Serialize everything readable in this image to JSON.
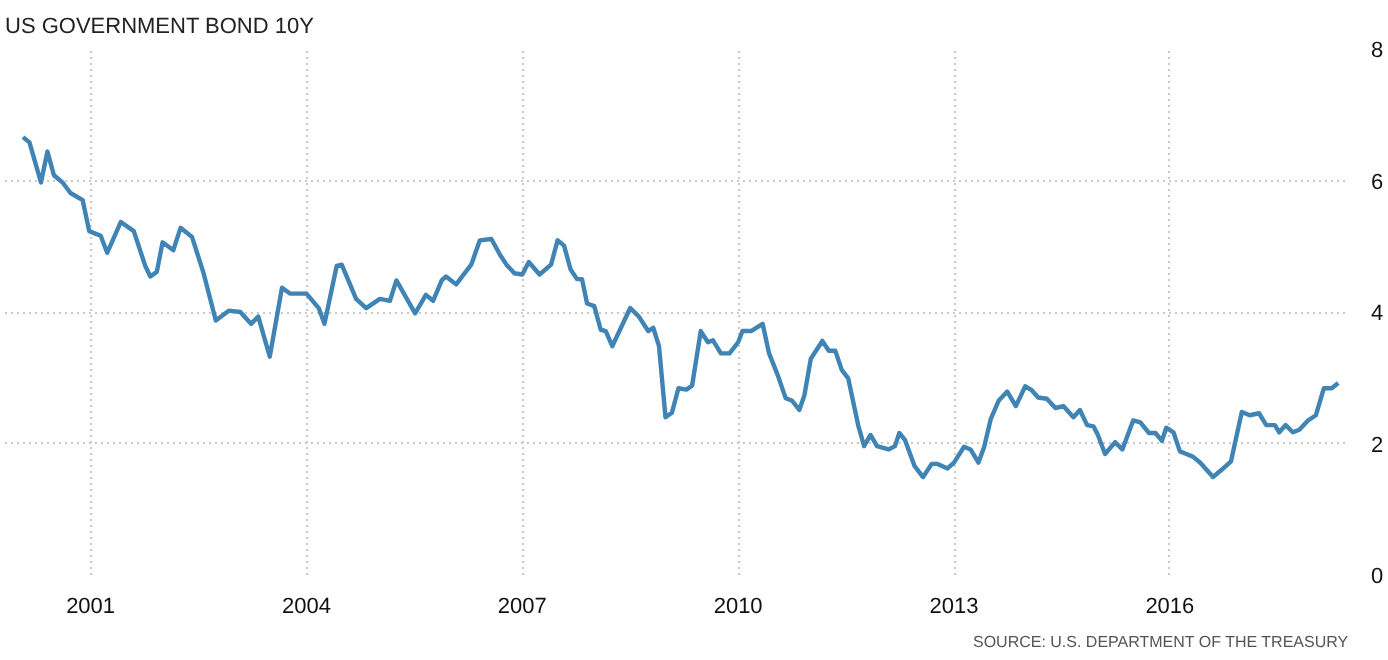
{
  "chart_data": {
    "type": "line",
    "title": "US GOVERNMENT BOND 10Y",
    "annotations": [
      "SOURCE: U.S. DEPARTMENT OF THE TREASURY"
    ],
    "x": [
      2000.06,
      2000.15,
      2000.31,
      2000.4,
      2000.49,
      2000.61,
      2000.72,
      2000.89,
      2000.98,
      2001.14,
      2001.23,
      2001.42,
      2001.6,
      2001.76,
      2001.83,
      2001.92,
      2002.0,
      2002.15,
      2002.25,
      2002.41,
      2002.57,
      2002.74,
      2002.92,
      2003.08,
      2003.23,
      2003.33,
      2003.49,
      2003.66,
      2003.77,
      2004.0,
      2004.17,
      2004.25,
      2004.42,
      2004.49,
      2004.69,
      2004.83,
      2005.02,
      2005.16,
      2005.25,
      2005.51,
      2005.66,
      2005.76,
      2005.88,
      2005.94,
      2006.08,
      2006.29,
      2006.41,
      2006.57,
      2006.69,
      2006.78,
      2006.89,
      2007.0,
      2007.09,
      2007.24,
      2007.4,
      2007.49,
      2007.58,
      2007.67,
      2007.76,
      2007.83,
      2007.9,
      2008.0,
      2008.09,
      2008.16,
      2008.25,
      2008.5,
      2008.62,
      2008.75,
      2008.82,
      2008.9,
      2008.99,
      2009.08,
      2009.17,
      2009.28,
      2009.36,
      2009.48,
      2009.58,
      2009.65,
      2009.76,
      2009.88,
      2010.0,
      2010.06,
      2010.18,
      2010.34,
      2010.43,
      2010.55,
      2010.66,
      2010.75,
      2010.85,
      2010.92,
      2011.01,
      2011.17,
      2011.26,
      2011.35,
      2011.44,
      2011.53,
      2011.67,
      2011.75,
      2011.84,
      2011.93,
      2012.09,
      2012.18,
      2012.24,
      2012.32,
      2012.45,
      2012.57,
      2012.69,
      2012.77,
      2012.91,
      2013.0,
      2013.14,
      2013.23,
      2013.34,
      2013.42,
      2013.51,
      2013.62,
      2013.74,
      2013.86,
      2013.99,
      2014.08,
      2014.17,
      2014.29,
      2014.41,
      2014.52,
      2014.66,
      2014.75,
      2014.85,
      2014.94,
      2015.0,
      2015.1,
      2015.24,
      2015.34,
      2015.49,
      2015.59,
      2015.71,
      2015.8,
      2015.89,
      2015.95,
      2016.05,
      2016.14,
      2016.23,
      2016.32,
      2016.42,
      2016.6,
      2016.72,
      2016.85,
      2017.0,
      2017.11,
      2017.24,
      2017.34,
      2017.46,
      2017.52,
      2017.61,
      2017.71,
      2017.8,
      2017.92,
      2018.03,
      2018.14,
      2018.25,
      2018.34
    ],
    "series": [
      {
        "color": "#3f84b5",
        "values": [
          6.66,
          6.58,
          5.97,
          6.44,
          6.08,
          5.97,
          5.81,
          5.7,
          5.23,
          5.16,
          4.9,
          5.37,
          5.23,
          4.7,
          4.54,
          4.61,
          5.06,
          4.94,
          5.28,
          5.14,
          4.59,
          3.87,
          4.02,
          4.0,
          3.82,
          3.93,
          3.32,
          4.37,
          4.28,
          4.28,
          4.06,
          3.82,
          4.7,
          4.72,
          4.2,
          4.06,
          4.2,
          4.17,
          4.48,
          3.98,
          4.26,
          4.17,
          4.48,
          4.54,
          4.42,
          4.72,
          5.09,
          5.11,
          4.87,
          4.72,
          4.59,
          4.57,
          4.76,
          4.57,
          4.72,
          5.09,
          5.01,
          4.65,
          4.5,
          4.5,
          4.13,
          4.09,
          3.73,
          3.71,
          3.48,
          4.06,
          3.93,
          3.71,
          3.76,
          3.48,
          2.4,
          2.47,
          2.84,
          2.82,
          2.88,
          3.71,
          3.54,
          3.57,
          3.37,
          3.37,
          3.54,
          3.71,
          3.71,
          3.82,
          3.37,
          3.04,
          2.69,
          2.65,
          2.51,
          2.73,
          3.29,
          3.56,
          3.41,
          3.41,
          3.12,
          2.99,
          2.27,
          1.96,
          2.13,
          1.96,
          1.91,
          1.96,
          2.16,
          2.05,
          1.66,
          1.49,
          1.69,
          1.69,
          1.62,
          1.71,
          1.95,
          1.91,
          1.71,
          1.95,
          2.37,
          2.65,
          2.79,
          2.57,
          2.87,
          2.81,
          2.7,
          2.68,
          2.54,
          2.57,
          2.4,
          2.51,
          2.28,
          2.26,
          2.13,
          1.84,
          2.02,
          1.91,
          2.35,
          2.32,
          2.16,
          2.16,
          2.04,
          2.24,
          2.17,
          1.88,
          1.84,
          1.8,
          1.71,
          1.49,
          1.6,
          1.73,
          2.48,
          2.43,
          2.46,
          2.28,
          2.28,
          2.17,
          2.28,
          2.17,
          2.21,
          2.35,
          2.43,
          2.84,
          2.84,
          2.92
        ]
      }
    ],
    "xlim": [
      1999.81,
      2018.49
    ],
    "ylim": [
      0,
      8
    ],
    "xticks": [
      2001,
      2004,
      2007,
      2010,
      2013,
      2016
    ],
    "yticks": [
      0,
      2,
      4,
      6,
      8
    ],
    "grid": true,
    "marker": "none",
    "line_style": "solid"
  }
}
